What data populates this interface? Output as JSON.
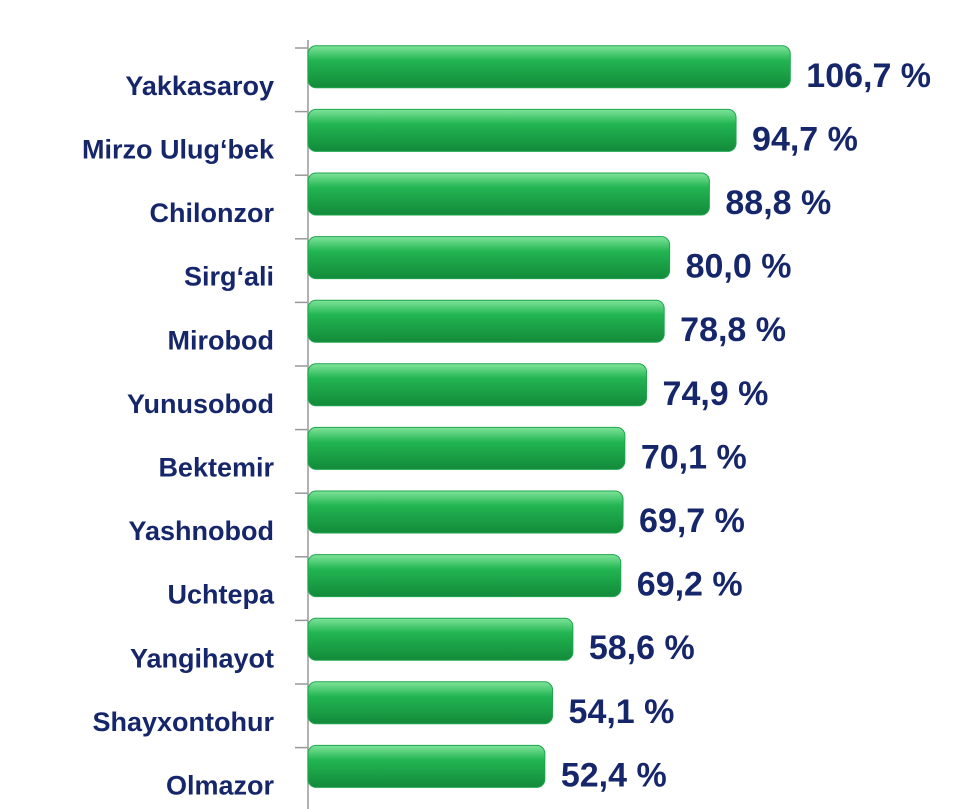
{
  "chart_data": {
    "type": "barh",
    "categories": [
      "Yakkasaroy",
      "Mirzo Ulug‘bek",
      "Chilonzor",
      "Sirg‘ali",
      "Mirobod",
      "Yunusobod",
      "Bektemir",
      "Yashnobod",
      "Uchtepa",
      "Yangihayot",
      "Shayxontohur",
      "Olmazor"
    ],
    "values": [
      106.7,
      94.7,
      88.8,
      80.0,
      78.8,
      74.9,
      70.1,
      69.7,
      69.2,
      58.6,
      54.1,
      52.4
    ],
    "value_labels": [
      "106,7 %",
      "94,7 %",
      "88,8 %",
      "80,0 %",
      "78,8 %",
      "74,9 %",
      "70,1 %",
      "69,7 %",
      "69,2 %",
      "58,6 %",
      "54,1 %",
      "52,4 %"
    ],
    "color": "#1ea64c"
  }
}
